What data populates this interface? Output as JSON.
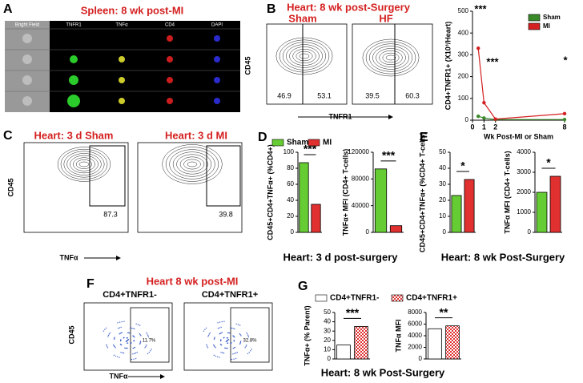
{
  "panels": {
    "A": {
      "letter": "A",
      "title": "Spleen: 8 wk post-MI",
      "columns": [
        "Bright Field",
        "TNFR1",
        "TNFα",
        "CD4",
        "DAPI"
      ]
    },
    "B": {
      "letter": "B",
      "title": "Heart: 8 wk post-Surgery",
      "plots": [
        "Sham",
        "HF"
      ],
      "gates": [
        [
          "46.9",
          "53.1"
        ],
        [
          "39.5",
          "60.3"
        ]
      ],
      "yaxis": "CD45",
      "xaxis": "TNFR1"
    },
    "C": {
      "letter": "C",
      "plots": [
        "Heart: 3 d Sham",
        "Heart: 3 d MI"
      ],
      "gates": [
        "87.3",
        "39.8"
      ],
      "yaxis": "CD45",
      "xaxis": "TNFα"
    },
    "D": {
      "letter": "D",
      "caption": "Heart: 3 d post-surgery"
    },
    "E": {
      "letter": "E",
      "caption": "Heart: 8 wk Post-Surgery"
    },
    "F": {
      "letter": "F",
      "title": "Heart 8 wk post-MI",
      "plots": [
        "CD4+TNFR1-",
        "CD4+TNFR1+"
      ],
      "gates": [
        "11.7%",
        "32.8%"
      ],
      "yaxis": "CD45",
      "xaxis": "TNFα"
    },
    "G": {
      "letter": "G",
      "caption": "Heart: 8 wk Post-Surgery"
    }
  },
  "chart_data": [
    {
      "type": "line",
      "ylabel": "CD4+TNFR1+ (X10³/Heart)",
      "xlabel": "Wk Post-MI or Sham",
      "x": [
        0.5,
        1,
        2,
        8
      ],
      "xlim": [
        0,
        8
      ],
      "xticks": [
        0,
        1,
        2,
        8
      ],
      "ylim": [
        0,
        500
      ],
      "yticks": [
        0,
        100,
        200,
        300,
        400,
        500
      ],
      "series": [
        {
          "name": "Sham",
          "color": "#3a8a2a",
          "values": [
            18,
            10,
            3,
            3
          ]
        },
        {
          "name": "MI",
          "color": "#d42020",
          "values": [
            330,
            80,
            5,
            30
          ]
        }
      ],
      "annotations": [
        "***",
        "***",
        "*"
      ]
    },
    {
      "type": "bar",
      "ylabel": "CD45+CD4+TNFα+ (%CD4+)",
      "ylim": [
        0,
        100
      ],
      "yticks": [
        0,
        20,
        40,
        60,
        80,
        100
      ],
      "series": [
        {
          "name": "Sham",
          "color": "#66cc33",
          "values": [
            87
          ]
        },
        {
          "name": "MI",
          "color": "#e03030",
          "values": [
            35
          ]
        }
      ],
      "annotations": [
        "***"
      ]
    },
    {
      "type": "bar",
      "ylabel": "TNFα+ MFI (CD4+ T-cells)",
      "ylim": [
        0,
        120000
      ],
      "yticks": [
        0,
        40000,
        80000,
        120000
      ],
      "series": [
        {
          "color": "#66cc33",
          "values": [
            95000
          ]
        },
        {
          "color": "#e03030",
          "values": [
            10000
          ]
        }
      ],
      "annotations": [
        "***"
      ]
    },
    {
      "type": "bar",
      "ylabel": "CD45+CD4+TNFα+ (%CD4+ T-cells)",
      "ylim": [
        0,
        50
      ],
      "yticks": [
        0,
        10,
        20,
        30,
        40,
        50
      ],
      "series": [
        {
          "color": "#66cc33",
          "values": [
            23
          ]
        },
        {
          "color": "#e03030",
          "values": [
            33
          ]
        }
      ],
      "annotations": [
        "*"
      ]
    },
    {
      "type": "bar",
      "ylabel": "TNFα MFI (CD4+ T-cells)",
      "ylim": [
        0,
        4000
      ],
      "yticks": [
        0,
        1000,
        2000,
        3000,
        4000
      ],
      "series": [
        {
          "color": "#66cc33",
          "values": [
            2000
          ]
        },
        {
          "color": "#e03030",
          "values": [
            2800
          ]
        }
      ],
      "annotations": [
        "*"
      ]
    },
    {
      "type": "bar",
      "ylabel": "TNFα+ (% Parent)",
      "ylim": [
        0,
        50
      ],
      "yticks": [
        0,
        10,
        20,
        30,
        40,
        50
      ],
      "series": [
        {
          "name": "CD4+TNFR1-",
          "color": "#ffffff",
          "values": [
            15
          ]
        },
        {
          "name": "CD4+TNFR1+",
          "color": "#e03030",
          "pattern": "checker",
          "values": [
            35
          ]
        }
      ],
      "annotations": [
        "***"
      ]
    },
    {
      "type": "bar",
      "ylabel": "TNFα MFI",
      "ylim": [
        0,
        8000
      ],
      "yticks": [
        0,
        2000,
        4000,
        6000,
        8000
      ],
      "series": [
        {
          "color": "#ffffff",
          "values": [
            5200
          ]
        },
        {
          "color": "#e03030",
          "pattern": "checker",
          "values": [
            5700
          ]
        }
      ],
      "annotations": [
        "**"
      ]
    }
  ]
}
